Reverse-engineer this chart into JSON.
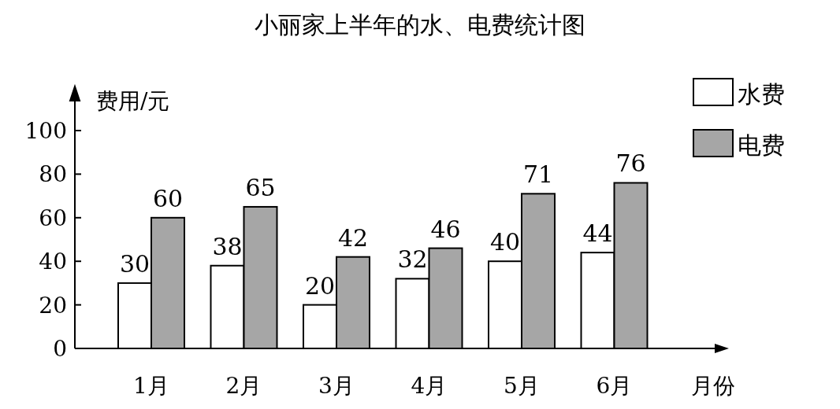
{
  "chart_data": {
    "type": "bar",
    "title": "小丽家上半年的水、电费统计图",
    "xlabel": "月份",
    "ylabel": "费用/元",
    "categories": [
      "1月",
      "2月",
      "3月",
      "4月",
      "5月",
      "6月"
    ],
    "series": [
      {
        "name": "水费",
        "color": "#ffffff",
        "values": [
          30,
          38,
          20,
          32,
          40,
          44
        ]
      },
      {
        "name": "电费",
        "color": "#a6a6a6",
        "values": [
          60,
          65,
          42,
          46,
          71,
          76
        ]
      }
    ],
    "ylim": [
      0,
      100
    ],
    "yticks": [
      0,
      20,
      40,
      60,
      80,
      100
    ],
    "data_labels": true,
    "legend": "top right"
  }
}
